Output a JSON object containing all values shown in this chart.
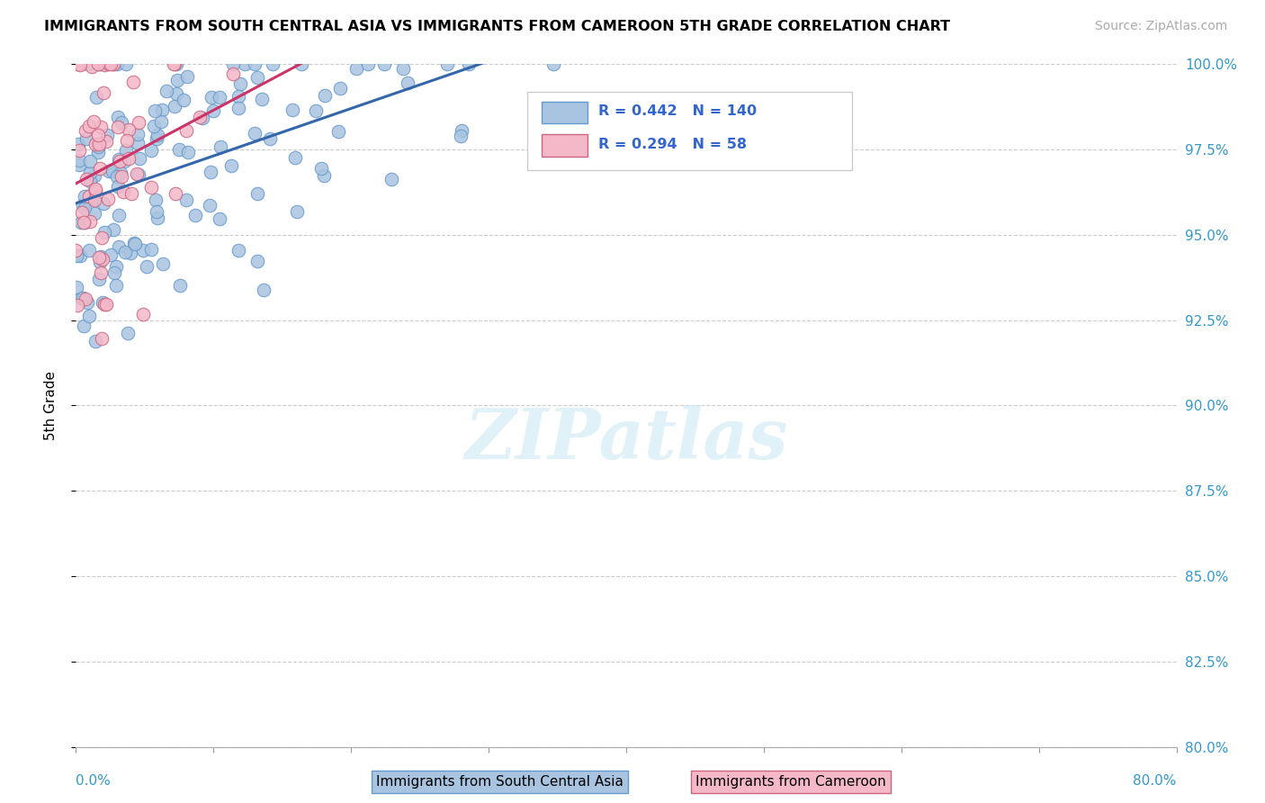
{
  "title": "IMMIGRANTS FROM SOUTH CENTRAL ASIA VS IMMIGRANTS FROM CAMEROON 5TH GRADE CORRELATION CHART",
  "source": "Source: ZipAtlas.com",
  "ylabel": "5th Grade",
  "xmin": 0.0,
  "xmax": 80.0,
  "ymin": 80.0,
  "ymax": 100.0,
  "yticks": [
    80.0,
    82.5,
    85.0,
    87.5,
    90.0,
    92.5,
    95.0,
    97.5,
    100.0
  ],
  "blue_R": 0.442,
  "blue_N": 140,
  "pink_R": 0.294,
  "pink_N": 58,
  "blue_color": "#a8c4e0",
  "blue_edge": "#6699cc",
  "blue_line_color": "#3366aa",
  "pink_color": "#f4b8c8",
  "pink_edge": "#cc6680",
  "pink_line_color": "#cc3366",
  "legend_blue_label": "Immigrants from South Central Asia",
  "legend_pink_label": "Immigrants from Cameroon"
}
